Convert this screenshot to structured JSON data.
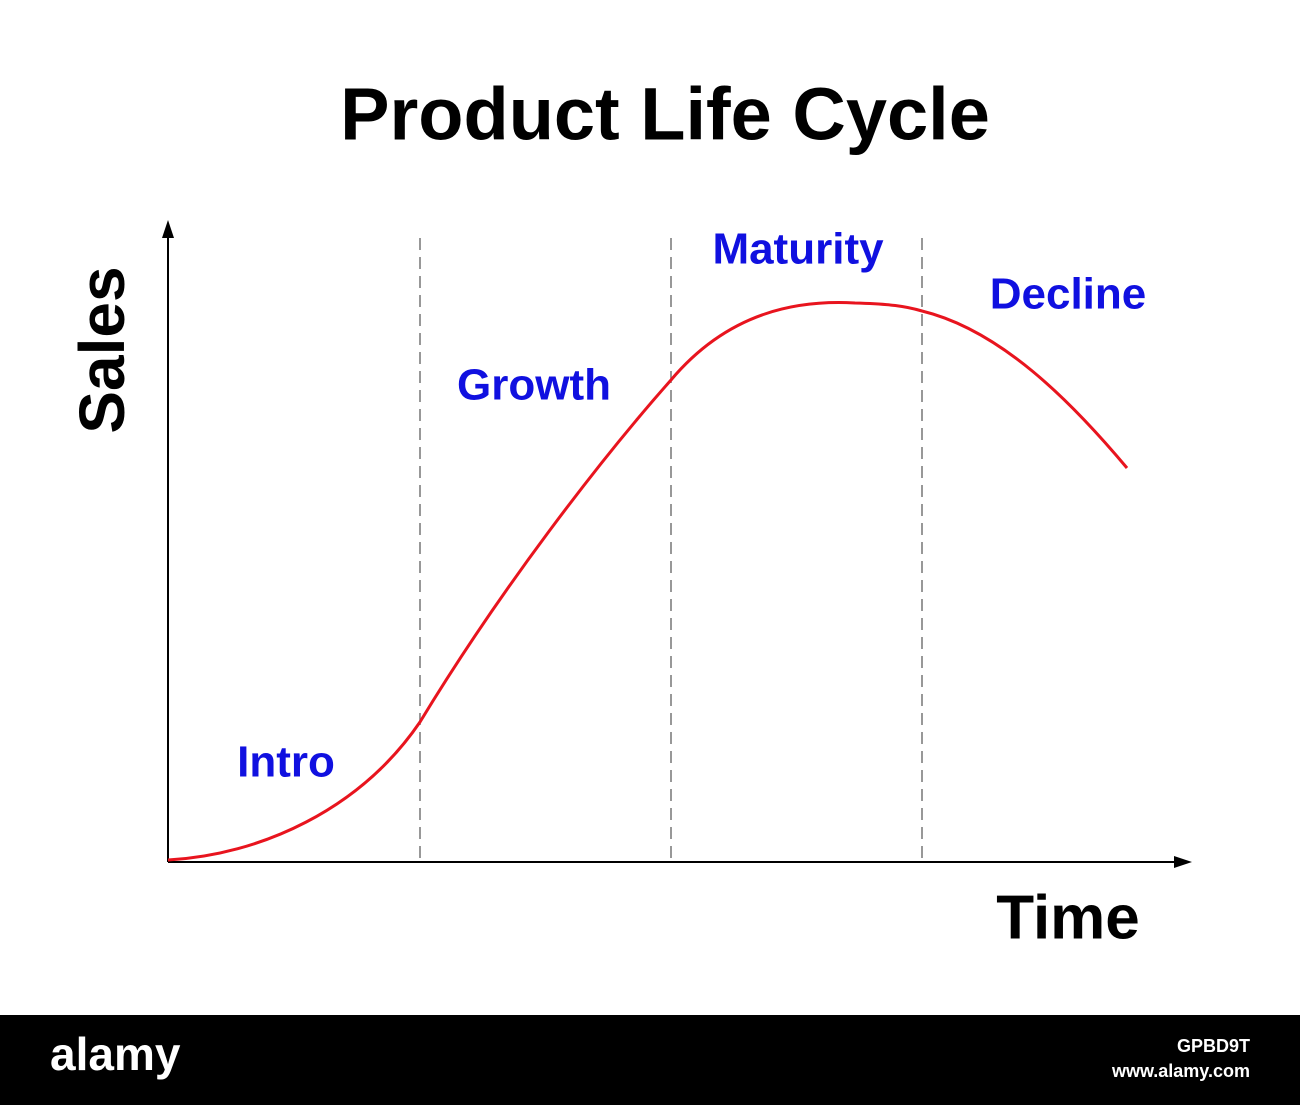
{
  "title": "Product Life Cycle",
  "axes": {
    "y_label": "Sales",
    "x_label": "Time"
  },
  "stages": [
    "Intro",
    "Growth",
    "Maturity",
    "Decline"
  ],
  "footer": {
    "brand": "alamy",
    "image_id": "GPBD9T",
    "url": "www.alamy.com"
  }
}
